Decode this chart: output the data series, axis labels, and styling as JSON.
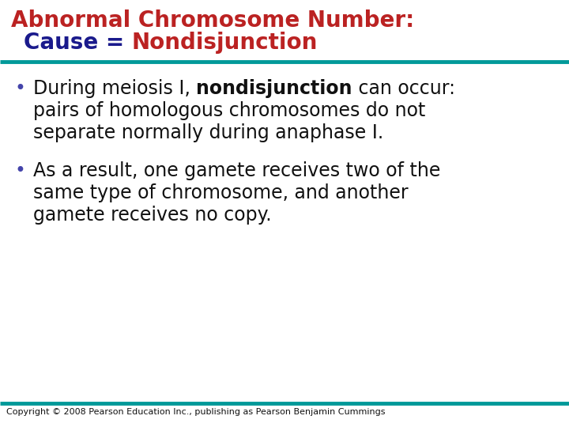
{
  "title_line1": "Abnormal Chromosome Number:",
  "title_line2_part1": "Cause = ",
  "title_line2_part2": "Nondisjunction",
  "title_line1_color": "#bb2222",
  "title_line2_color1": "#1a1a8c",
  "title_line2_color2": "#bb2222",
  "divider_color": "#009999",
  "bullet_color": "#4444aa",
  "body_color": "#111111",
  "background_color": "#ffffff",
  "copyright": "Copyright © 2008 Pearson Education Inc., publishing as Pearson Benjamin Cummings",
  "title_fontsize": 20,
  "body_fontsize": 17,
  "copyright_fontsize": 8,
  "bullet1_pre": "During meiosis I, ",
  "bullet1_bold": "nondisjunction",
  "bullet1_post": " can occur:",
  "bullet1_line2": "pairs of homologous chromosomes do not",
  "bullet1_line3": "separate normally during anaphase I.",
  "bullet2_line1": "As a result, one gamete receives two of the",
  "bullet2_line2": "same type of chromosome, and another",
  "bullet2_line3": "gamete receives no copy."
}
